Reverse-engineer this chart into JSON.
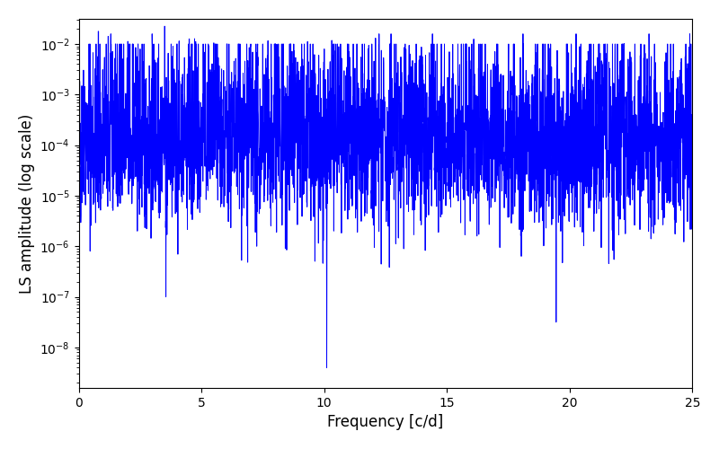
{
  "xlabel": "Frequency [c/d]",
  "ylabel": "LS amplitude (log scale)",
  "xlim": [
    0,
    25
  ],
  "ylim_min_exp": -8.8,
  "ylim_max_exp": -1.5,
  "line_color": "#0000ff",
  "line_width": 0.7,
  "figsize": [
    8.0,
    5.0
  ],
  "dpi": 100,
  "background_color": "#ffffff",
  "n_points": 4000,
  "seed": 42
}
